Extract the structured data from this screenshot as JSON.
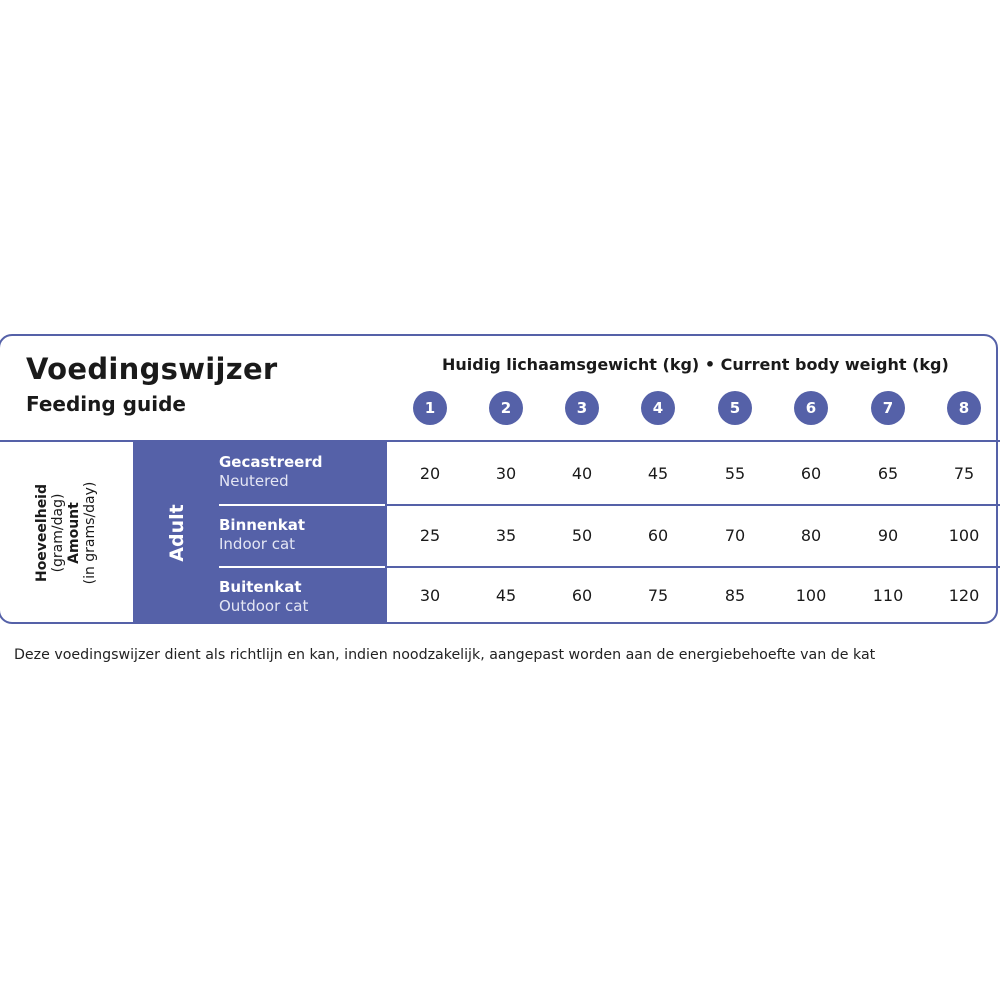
{
  "title": "Voedingswijzer",
  "subtitle": "Feeding guide",
  "weight_header": "Huidig lichaamsgewicht (kg)  •  Current body weight (kg)",
  "weights": [
    "1",
    "2",
    "3",
    "4",
    "5",
    "6",
    "7",
    "8"
  ],
  "amount_label": {
    "nl": "Hoeveelheid",
    "nl_unit": "(gram/dag)",
    "en": "Amount",
    "en_unit": "(in grams/day)"
  },
  "group": "Adult",
  "rows": [
    {
      "nl": "Gecastreerd",
      "en": "Neutered",
      "values": [
        "20",
        "30",
        "40",
        "45",
        "55",
        "60",
        "65",
        "75"
      ]
    },
    {
      "nl": "Binnenkat",
      "en": "Indoor cat",
      "values": [
        "25",
        "35",
        "50",
        "60",
        "70",
        "80",
        "90",
        "100"
      ]
    },
    {
      "nl": "Buitenkat",
      "en": "Outdoor cat",
      "values": [
        "30",
        "45",
        "60",
        "75",
        "85",
        "100",
        "110",
        "120"
      ]
    }
  ],
  "footnote": "Deze voedingswijzer dient als richtlijn en kan, indien noodzakelijk, aangepast worden aan de energiebehoefte van de kat",
  "colors": {
    "accent": "#5561a8"
  }
}
